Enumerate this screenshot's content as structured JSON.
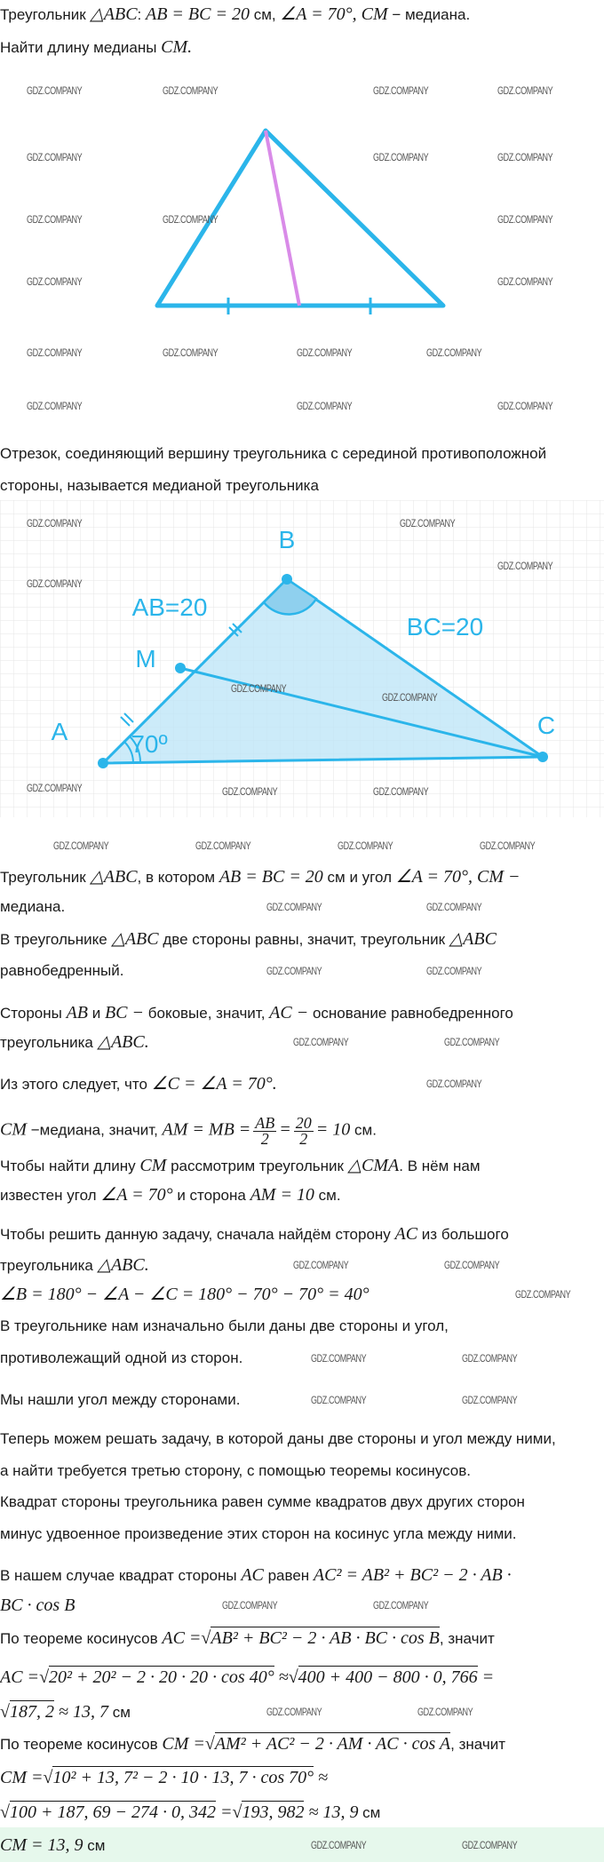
{
  "watermark": "GDZ.COMPANY",
  "colors": {
    "triangle": "#2bb5ea",
    "median": "#d98be8",
    "fill": "#bfe6f7",
    "grid": "#e5e5e5",
    "answer_bg": "#e6f8ec"
  },
  "figure2": {
    "label_a": "A",
    "label_b": "B",
    "label_c": "C",
    "label_m": "M",
    "label_ab": "AB=20",
    "label_bc": "BC=20",
    "label_angle": "70º"
  },
  "lines": [
    {
      "segs": [
        {
          "t": "Треугольник "
        },
        {
          "t": "△ABC",
          "k": "m"
        },
        {
          "t": ": "
        },
        {
          "t": "AB = BC = 20",
          "k": "m"
        },
        {
          "t": " см, "
        },
        {
          "t": "∠A = 70°, CM",
          "k": "m"
        },
        {
          "t": " − медиана."
        }
      ]
    },
    {
      "segs": [
        {
          "t": "Найти длину медианы "
        },
        {
          "t": "CM.",
          "k": "m"
        }
      ]
    },
    {
      "segs": [
        {
          "t": "Отрезок, соединяющий вершину треугольника с серединой противоположной"
        }
      ]
    },
    {
      "segs": [
        {
          "t": "стороны, называется медианой треугольника"
        }
      ]
    },
    {
      "segs": [
        {
          "t": "Треугольник "
        },
        {
          "t": "△ABC",
          "k": "m"
        },
        {
          "t": ", в котором "
        },
        {
          "t": "AB = BC = 20",
          "k": "m"
        },
        {
          "t": " см и угол "
        },
        {
          "t": "∠A = 70°, CM −",
          "k": "m"
        }
      ]
    },
    {
      "segs": [
        {
          "t": "медиана."
        }
      ]
    },
    {
      "segs": [
        {
          "t": "В треугольнике "
        },
        {
          "t": "△ABC",
          "k": "m"
        },
        {
          "t": " две стороны равны, значит, треугольник "
        },
        {
          "t": "△ABC",
          "k": "m"
        }
      ]
    },
    {
      "segs": [
        {
          "t": "равнобедренный."
        }
      ]
    },
    {
      "segs": [
        {
          "t": "Стороны "
        },
        {
          "t": "AB",
          "k": "m"
        },
        {
          "t": " и "
        },
        {
          "t": "BC −",
          "k": "m"
        },
        {
          "t": " боковые, значит, "
        },
        {
          "t": "AC −",
          "k": "m"
        },
        {
          "t": " основание равнобедренного"
        }
      ]
    },
    {
      "segs": [
        {
          "t": "треугольника "
        },
        {
          "t": "△ABC.",
          "k": "m"
        }
      ]
    },
    {
      "segs": [
        {
          "t": "Из этого следует, что "
        },
        {
          "t": "∠C = ∠A = 70°.",
          "k": "m"
        }
      ]
    },
    {
      "segs": [
        {
          "t": "CM",
          "k": "m"
        },
        {
          "t": " −медиана, значит, "
        },
        {
          "t": "AM = MB =",
          "k": "m"
        },
        {
          "k": "frac",
          "n": "AB",
          "d": "2"
        },
        {
          "t": "=",
          "k": "m"
        },
        {
          "k": "frac",
          "n": "20",
          "d": "2"
        },
        {
          "t": "= 10",
          "k": "m"
        },
        {
          "t": " см."
        }
      ]
    },
    {
      "segs": [
        {
          "t": "Чтобы найти длину "
        },
        {
          "t": "CM",
          "k": "m"
        },
        {
          "t": " рассмотрим треугольник "
        },
        {
          "t": "△CMA",
          "k": "m"
        },
        {
          "t": ". В нём нам"
        }
      ]
    },
    {
      "segs": [
        {
          "t": "известен угол "
        },
        {
          "t": "∠A = 70°",
          "k": "m"
        },
        {
          "t": " и сторона "
        },
        {
          "t": "AM = 10",
          "k": "m"
        },
        {
          "t": " см."
        }
      ]
    },
    {
      "segs": [
        {
          "t": "Чтобы решить данную задачу, сначала найдём сторону "
        },
        {
          "t": "AC",
          "k": "m"
        },
        {
          "t": " из большого"
        }
      ]
    },
    {
      "segs": [
        {
          "t": "треугольника "
        },
        {
          "t": "△ABC.",
          "k": "m"
        }
      ]
    },
    {
      "segs": [
        {
          "t": "∠B = 180° − ∠A − ∠C = 180° − 70° − 70° = 40°",
          "k": "m"
        }
      ]
    },
    {
      "segs": [
        {
          "t": "В треугольнике нам изначально были даны две стороны и угол,"
        }
      ]
    },
    {
      "segs": [
        {
          "t": "противолежащий одной из сторон."
        }
      ]
    },
    {
      "segs": [
        {
          "t": "Мы нашли угол между сторонами."
        }
      ]
    },
    {
      "segs": [
        {
          "t": "Теперь можем решать задачу, в которой даны две стороны и угол между ними,"
        }
      ]
    },
    {
      "segs": [
        {
          "t": "а найти требуется третью сторону, с помощью теоремы косинусов."
        }
      ]
    },
    {
      "segs": [
        {
          "t": "Квадрат стороны треугольника равен сумме квадратов двух других сторон"
        }
      ]
    },
    {
      "segs": [
        {
          "t": "минус удвоенное произведение этих сторон на косинус угла между ними."
        }
      ]
    },
    {
      "segs": [
        {
          "t": "В нашем случае квадрат стороны "
        },
        {
          "t": "AC",
          "k": "m"
        },
        {
          "t": " равен "
        },
        {
          "t": "AC² = AB² + BC² − 2 · AB ·",
          "k": "m"
        }
      ]
    },
    {
      "segs": [
        {
          "t": "BC · cos B",
          "k": "m"
        }
      ]
    },
    {
      "segs": [
        {
          "t": "По теореме косинусов "
        },
        {
          "t": "AC =",
          "k": "m"
        },
        {
          "k": "sqrt",
          "t": "AB² + BC² − 2 · AB · BC · cos B"
        },
        {
          "t": ", значит"
        }
      ]
    },
    {
      "segs": [
        {
          "t": "AC =",
          "k": "m"
        },
        {
          "k": "sqrt",
          "t": "20² + 20² − 2 · 20 · 20 · cos 40°"
        },
        {
          "t": " ≈",
          "k": "m"
        },
        {
          "k": "sqrt",
          "t": "400 + 400 − 800 · 0, 766"
        },
        {
          "t": " =",
          "k": "m"
        }
      ]
    },
    {
      "segs": [
        {
          "k": "sqrt",
          "t": "187, 2"
        },
        {
          "t": " ≈ 13, 7",
          "k": "m"
        },
        {
          "t": " см"
        }
      ]
    },
    {
      "segs": [
        {
          "t": "По теореме косинусов "
        },
        {
          "t": "CM =",
          "k": "m"
        },
        {
          "k": "sqrt",
          "t": "AM² + AC² − 2 · AM · AC · cos A"
        },
        {
          "t": ", значит"
        }
      ]
    },
    {
      "segs": [
        {
          "t": "CM =",
          "k": "m"
        },
        {
          "k": "sqrt",
          "t": "10² + 13, 7² − 2 · 10 · 13, 7 · cos 70°"
        },
        {
          "t": " ≈",
          "k": "m"
        }
      ]
    },
    {
      "segs": [
        {
          "k": "sqrt",
          "t": "100 + 187, 69 − 274 · 0, 342"
        },
        {
          "t": " =",
          "k": "m"
        },
        {
          "k": "sqrt",
          "t": "193, 982"
        },
        {
          "t": " ≈ 13, 9",
          "k": "m"
        },
        {
          "t": " см"
        }
      ]
    },
    {
      "segs": [
        {
          "t": "CM = 13, 9",
          "k": "m"
        },
        {
          "t": " см"
        }
      ]
    }
  ]
}
